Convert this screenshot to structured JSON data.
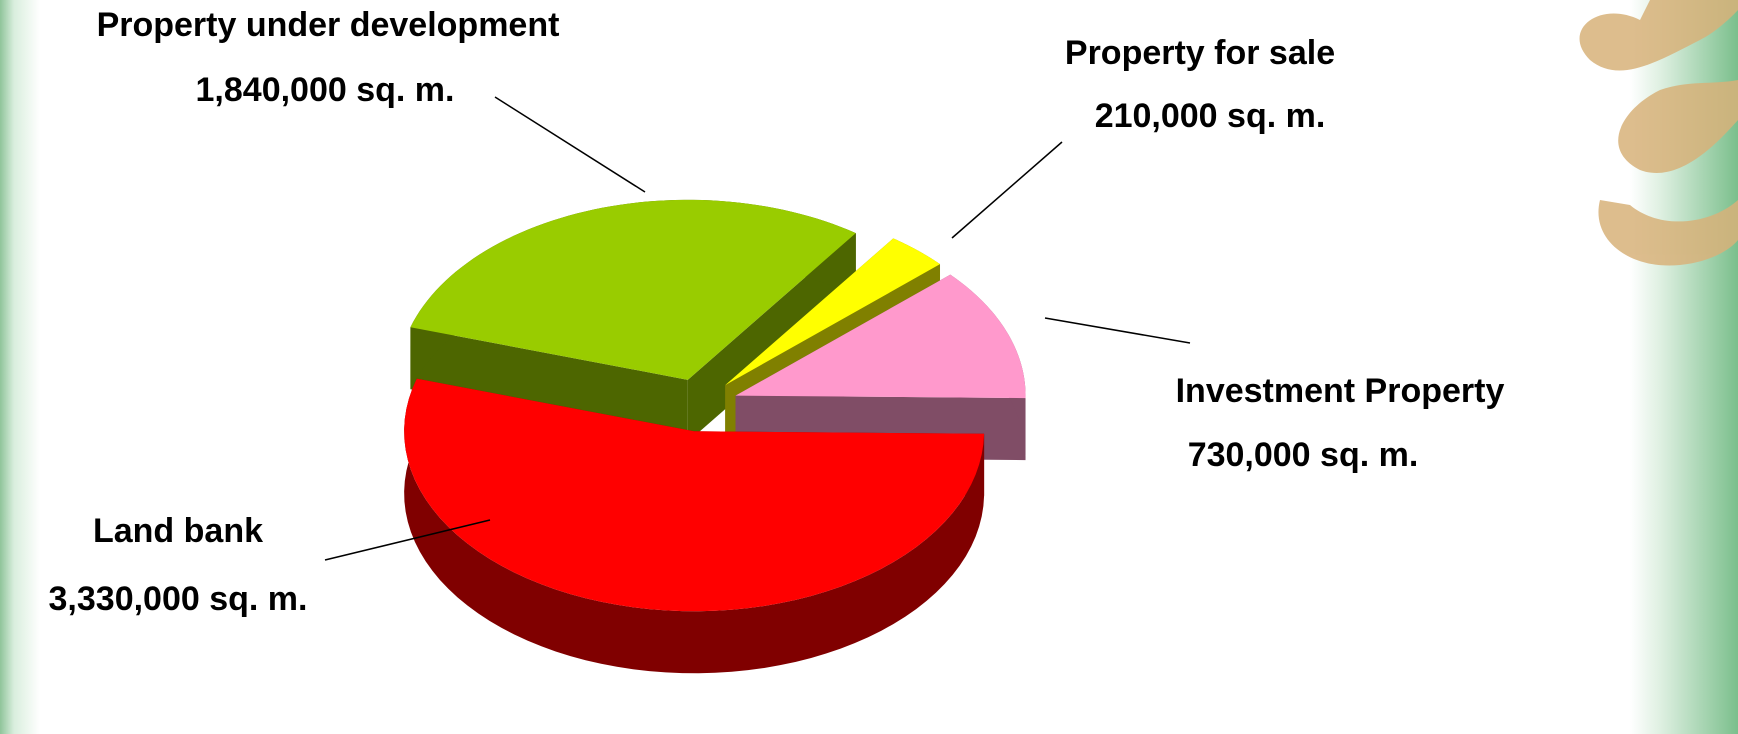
{
  "chart_data": {
    "type": "pie",
    "categories": [
      "Property under development",
      "Property for sale",
      "Investment Property",
      "Land bank"
    ],
    "values": [
      1840000,
      210000,
      730000,
      3330000
    ],
    "value_labels": [
      "1,840,000 sq. m.",
      "210,000 sq. m.",
      "730,000 sq. m.",
      "3,330,000 sq. m."
    ],
    "colors": [
      "#99cc00",
      "#ffff00",
      "#ff99cc",
      "#ff0000"
    ]
  }
}
